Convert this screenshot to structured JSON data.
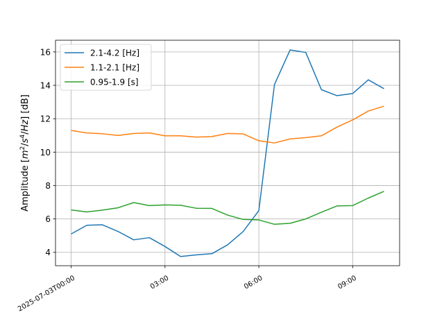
{
  "chart_data": {
    "type": "line",
    "ylabel_parts": [
      "Amplitude [",
      "m",
      "2",
      "/",
      "s",
      "4",
      "/",
      "Hz",
      "] [dB]"
    ],
    "x_hours": [
      0,
      0.5,
      1,
      1.5,
      2,
      2.5,
      3,
      3.5,
      4,
      4.5,
      5,
      5.5,
      6,
      6.5,
      7,
      7.5,
      8,
      8.5,
      9,
      9.5,
      10
    ],
    "xticks": [
      {
        "hour": 0,
        "label": "2025-07-03T00:00"
      },
      {
        "hour": 3,
        "label": "03:00"
      },
      {
        "hour": 6,
        "label": "06:00"
      },
      {
        "hour": 9,
        "label": "09:00"
      }
    ],
    "xlim_hours": [
      -0.5,
      10.5
    ],
    "ylim": [
      3.2,
      16.7
    ],
    "yticks": [
      4,
      6,
      8,
      10,
      12,
      14,
      16
    ],
    "grid": true,
    "legend_position": "top-left",
    "series": [
      {
        "name": "2.1-4.2 [Hz]",
        "color": "#1f77b4",
        "values": [
          5.1,
          5.62,
          5.65,
          5.25,
          4.75,
          4.88,
          4.35,
          3.75,
          3.85,
          3.92,
          4.45,
          5.25,
          6.5,
          14.05,
          16.12,
          15.97,
          13.74,
          13.38,
          13.51,
          14.33,
          13.8
        ]
      },
      {
        "name": "1.1-2.1 [Hz]",
        "color": "#ff7f0e",
        "values": [
          11.3,
          11.15,
          11.1,
          11.0,
          11.12,
          11.15,
          10.98,
          10.98,
          10.9,
          10.93,
          11.12,
          11.09,
          10.68,
          10.55,
          10.79,
          10.87,
          10.98,
          11.5,
          11.93,
          12.46,
          12.75
        ]
      },
      {
        "name": "0.95-1.9 [s]",
        "color": "#2ca02c",
        "values": [
          6.54,
          6.42,
          6.53,
          6.67,
          6.98,
          6.8,
          6.84,
          6.82,
          6.64,
          6.63,
          6.23,
          5.97,
          5.94,
          5.68,
          5.74,
          6.0,
          6.4,
          6.78,
          6.8,
          7.25,
          7.65
        ]
      }
    ]
  }
}
